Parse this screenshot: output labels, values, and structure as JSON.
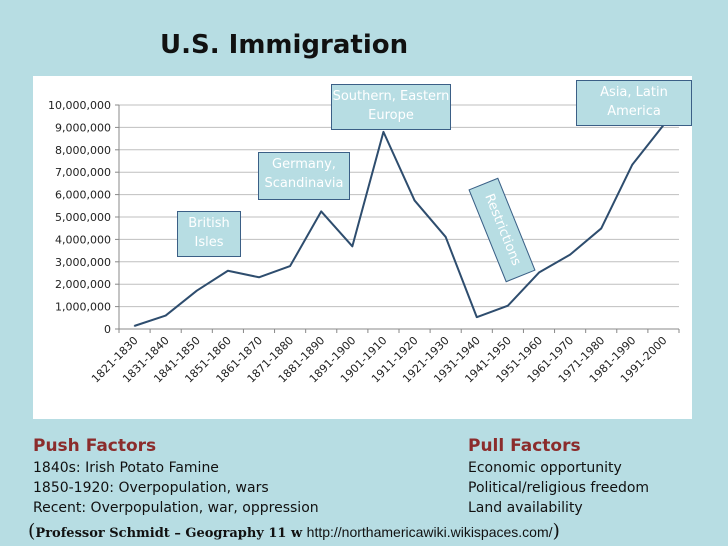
{
  "title": "U.S. Immigration",
  "chart_data": {
    "type": "line",
    "categories": [
      "1821-1830",
      "1831-1840",
      "1841-1850",
      "1851-1860",
      "1861-1870",
      "1871-1880",
      "1881-1890",
      "1891-1900",
      "1901-1910",
      "1911-1920",
      "1921-1930",
      "1931-1940",
      "1941-1950",
      "1951-1960",
      "1961-1970",
      "1971-1980",
      "1981-1990",
      "1991-2000"
    ],
    "values": [
      140000,
      600000,
      1710000,
      2600000,
      2310000,
      2810000,
      5250000,
      3690000,
      8800000,
      5740000,
      4110000,
      530000,
      1040000,
      2520000,
      3320000,
      4490000,
      7340000,
      9100000
    ],
    "y_ticks": [
      "0",
      "1,000,000",
      "2,000,000",
      "3,000,000",
      "4,000,000",
      "5,000,000",
      "6,000,000",
      "7,000,000",
      "8,000,000",
      "9,000,000",
      "10,000,000"
    ],
    "ylim": [
      0,
      10000000
    ],
    "grid": true,
    "line_color": "#2e4d6e",
    "annotations": [
      {
        "text": "British Isles"
      },
      {
        "text": "Germany, Scandinavia"
      },
      {
        "text": "Southern, Eastern Europe"
      },
      {
        "text": "Restrictions"
      },
      {
        "text": "Asia, Latin America"
      }
    ]
  },
  "push": {
    "heading": "Push Factors",
    "lines": [
      "1840s:  Irish Potato Famine",
      "1850-1920: Overpopulation, wars",
      "Recent:  Overpopulation, war, oppression"
    ]
  },
  "pull": {
    "heading": "Pull Factors",
    "lines": [
      "Economic opportunity",
      "Political/religious freedom",
      "Land availability"
    ]
  },
  "footer": {
    "open": "(",
    "professor": "Professor Schmidt – Geography 11 w",
    "url": "http://northamericawiki.wikispaces.com/",
    "close": ")"
  },
  "colors": {
    "background": "#b7dde3",
    "factor_heading": "#8b2c2c",
    "annotation_border": "#3b5f86"
  }
}
